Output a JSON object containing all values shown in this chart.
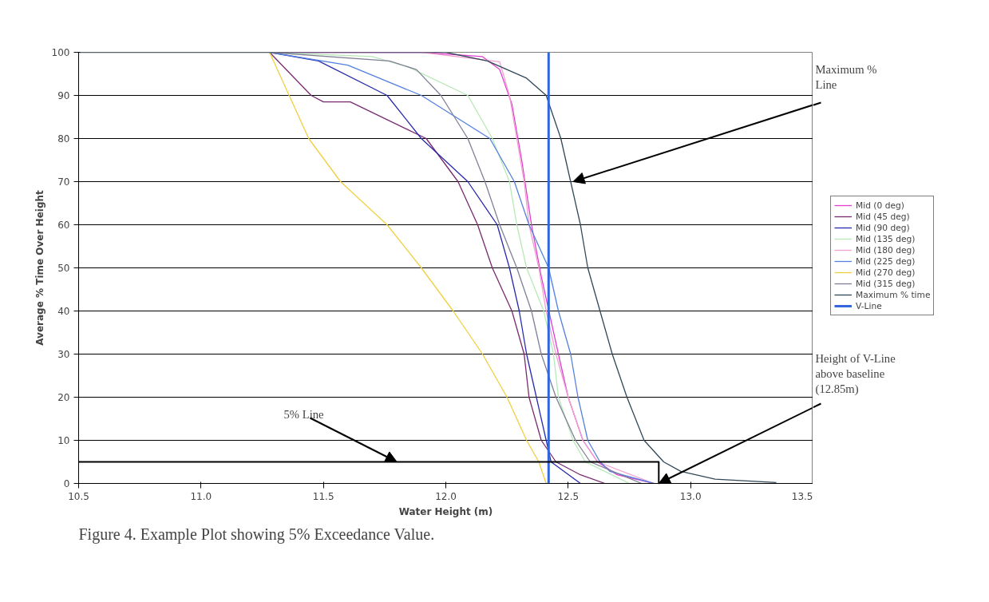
{
  "chart_data": {
    "type": "line",
    "xlabel": "Water Height (m)",
    "ylabel": "Average % Time Over Height",
    "xlim": [
      10.5,
      13.5
    ],
    "ylim": [
      0,
      100
    ],
    "xticks": [
      10.5,
      {
        "value": 11,
        "label": "11.0"
      },
      11.5,
      {
        "value": 12,
        "label": "12.0"
      },
      12.5,
      {
        "value": 13,
        "label": "13.0"
      },
      13.5
    ],
    "yticks": [
      0,
      10,
      20,
      30,
      40,
      50,
      60,
      70,
      80,
      90,
      100
    ],
    "grid": "y",
    "legend": "right",
    "marker": "none",
    "line_style": "solid",
    "series": [
      {
        "name": "Mid (0 deg)",
        "color": "#e040d0",
        "x": [
          11.28,
          11.9,
          12.15,
          12.22,
          12.27,
          12.31,
          12.35,
          12.39,
          12.46,
          12.5,
          12.56,
          12.62,
          12.7,
          12.85
        ],
        "values": [
          100,
          100,
          99,
          96,
          88,
          75,
          60,
          48,
          30,
          20,
          10,
          5,
          2,
          0
        ]
      },
      {
        "name": "Mid (45 deg)",
        "color": "#7a2a70",
        "x": [
          11.28,
          11.45,
          11.5,
          11.61,
          11.92,
          12.05,
          12.13,
          12.19,
          12.27,
          12.32,
          12.34,
          12.39,
          12.45,
          12.55,
          12.65
        ],
        "values": [
          100,
          90,
          88.5,
          88.5,
          80,
          70,
          60,
          50,
          40,
          30,
          20,
          10,
          5,
          2,
          0
        ]
      },
      {
        "name": "Mid (90 deg)",
        "color": "#2a2ab0",
        "x": [
          11.28,
          11.48,
          11.76,
          11.9,
          12.09,
          12.21,
          12.26,
          12.3,
          12.33,
          12.37,
          12.41,
          12.43,
          12.55
        ],
        "values": [
          100,
          98,
          90,
          80,
          70,
          60,
          50,
          40,
          30,
          20,
          10,
          5,
          0
        ]
      },
      {
        "name": "Mid (135 deg)",
        "color": "#b8e8b8",
        "x": [
          11.28,
          11.7,
          11.85,
          12.09,
          12.19,
          12.26,
          12.29,
          12.33,
          12.4,
          12.44,
          12.46,
          12.52,
          12.57,
          12.75
        ],
        "values": [
          100,
          99,
          96.5,
          90,
          80,
          70,
          60,
          50,
          40,
          30,
          20,
          10,
          5,
          0
        ]
      },
      {
        "name": "Mid (180 deg)",
        "color": "#f0a0d0",
        "x": [
          11.9,
          12.22,
          12.26,
          12.29,
          12.32,
          12.34,
          12.38,
          12.41,
          12.45,
          12.5,
          12.56,
          12.62,
          12.85
        ],
        "values": [
          100,
          97.8,
          90,
          80,
          70,
          60,
          50,
          40,
          30,
          20,
          10,
          5,
          0
        ]
      },
      {
        "name": "Mid (225 deg)",
        "color": "#5580e0",
        "x": [
          11.28,
          11.6,
          11.9,
          12.18,
          12.28,
          12.34,
          12.42,
          12.46,
          12.51,
          12.54,
          12.58,
          12.63,
          12.67,
          12.85
        ],
        "values": [
          100,
          97,
          90,
          80,
          70,
          60,
          50,
          40,
          30,
          20,
          10,
          5,
          2.8,
          0
        ]
      },
      {
        "name": "Mid (270 deg)",
        "color": "#f0d040",
        "x": [
          11.28,
          11.36,
          11.44,
          11.57,
          11.76,
          11.9,
          12.03,
          12.15,
          12.25,
          12.33,
          12.38,
          12.41
        ],
        "values": [
          100,
          90,
          80,
          70,
          60,
          50,
          40,
          30,
          20,
          10,
          5,
          0
        ]
      },
      {
        "name": "Mid (315 deg)",
        "color": "#808098",
        "x": [
          11.28,
          11.77,
          11.88,
          11.98,
          12.09,
          12.16,
          12.22,
          12.29,
          12.35,
          12.39,
          12.45,
          12.53,
          12.59,
          12.8
        ],
        "values": [
          100,
          98,
          96,
          90,
          80,
          70,
          60,
          50,
          40,
          30,
          20,
          10,
          5,
          0
        ]
      },
      {
        "name": "Maximum % time",
        "color": "#304858",
        "x": [
          10.5,
          12.0,
          12.17,
          12.33,
          12.41,
          12.47,
          12.51,
          12.55,
          12.58,
          12.63,
          12.68,
          12.74,
          12.81,
          12.89,
          12.96,
          13.1,
          13.35
        ],
        "values": [
          100,
          100,
          98,
          94,
          90,
          80,
          70,
          60,
          50,
          40,
          30,
          20,
          10,
          5,
          2.8,
          1,
          0.2
        ]
      },
      {
        "name": "V-Line",
        "color": "#3366dd",
        "x": [
          12.42,
          12.42
        ],
        "values": [
          0,
          100
        ]
      },
      {
        "color": "#000000",
        "x": [
          10.5,
          12.87,
          12.87
        ],
        "values": [
          5,
          5,
          0
        ]
      }
    ],
    "annotations": [
      {
        "text": "Maximum %\nLine",
        "x": 12.52,
        "y": 70
      },
      {
        "text": "5% Line",
        "x": 11.8,
        "y": 5
      },
      {
        "text": "Height of V-Line\nabove baseline\n(12.85m)",
        "x": 12.87,
        "y": 0
      },
      "Figure 4. Example Plot showing 5% Exceedance Value."
    ]
  }
}
